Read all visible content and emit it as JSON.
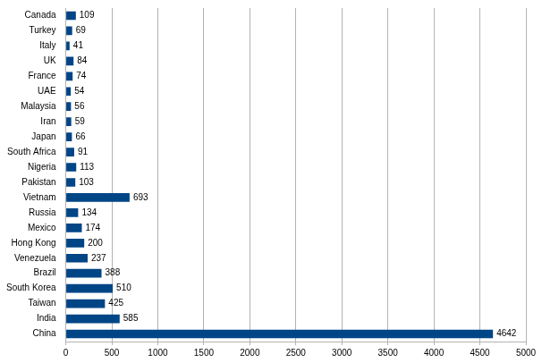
{
  "chart_data": {
    "type": "bar",
    "orientation": "horizontal",
    "categories": [
      "Canada",
      "Turkey",
      "Italy",
      "UK",
      "France",
      "UAE",
      "Malaysia",
      "Iran",
      "Japan",
      "South Africa",
      "Nigeria",
      "Pakistan",
      "Vietnam",
      "Russia",
      "Mexico",
      "Hong Kong",
      "Venezuela",
      "Brazil",
      "South Korea",
      "Taiwan",
      "India",
      "China"
    ],
    "values": [
      109,
      69,
      41,
      84,
      74,
      54,
      56,
      59,
      66,
      91,
      113,
      103,
      693,
      134,
      174,
      200,
      237,
      388,
      510,
      425,
      585,
      4642
    ],
    "color": "#004586",
    "xlim": [
      0,
      5000
    ],
    "xticks": [
      0,
      500,
      1000,
      1500,
      2000,
      2500,
      3000,
      3500,
      4000,
      4500,
      5000
    ],
    "grid": true,
    "data_labels": true
  }
}
